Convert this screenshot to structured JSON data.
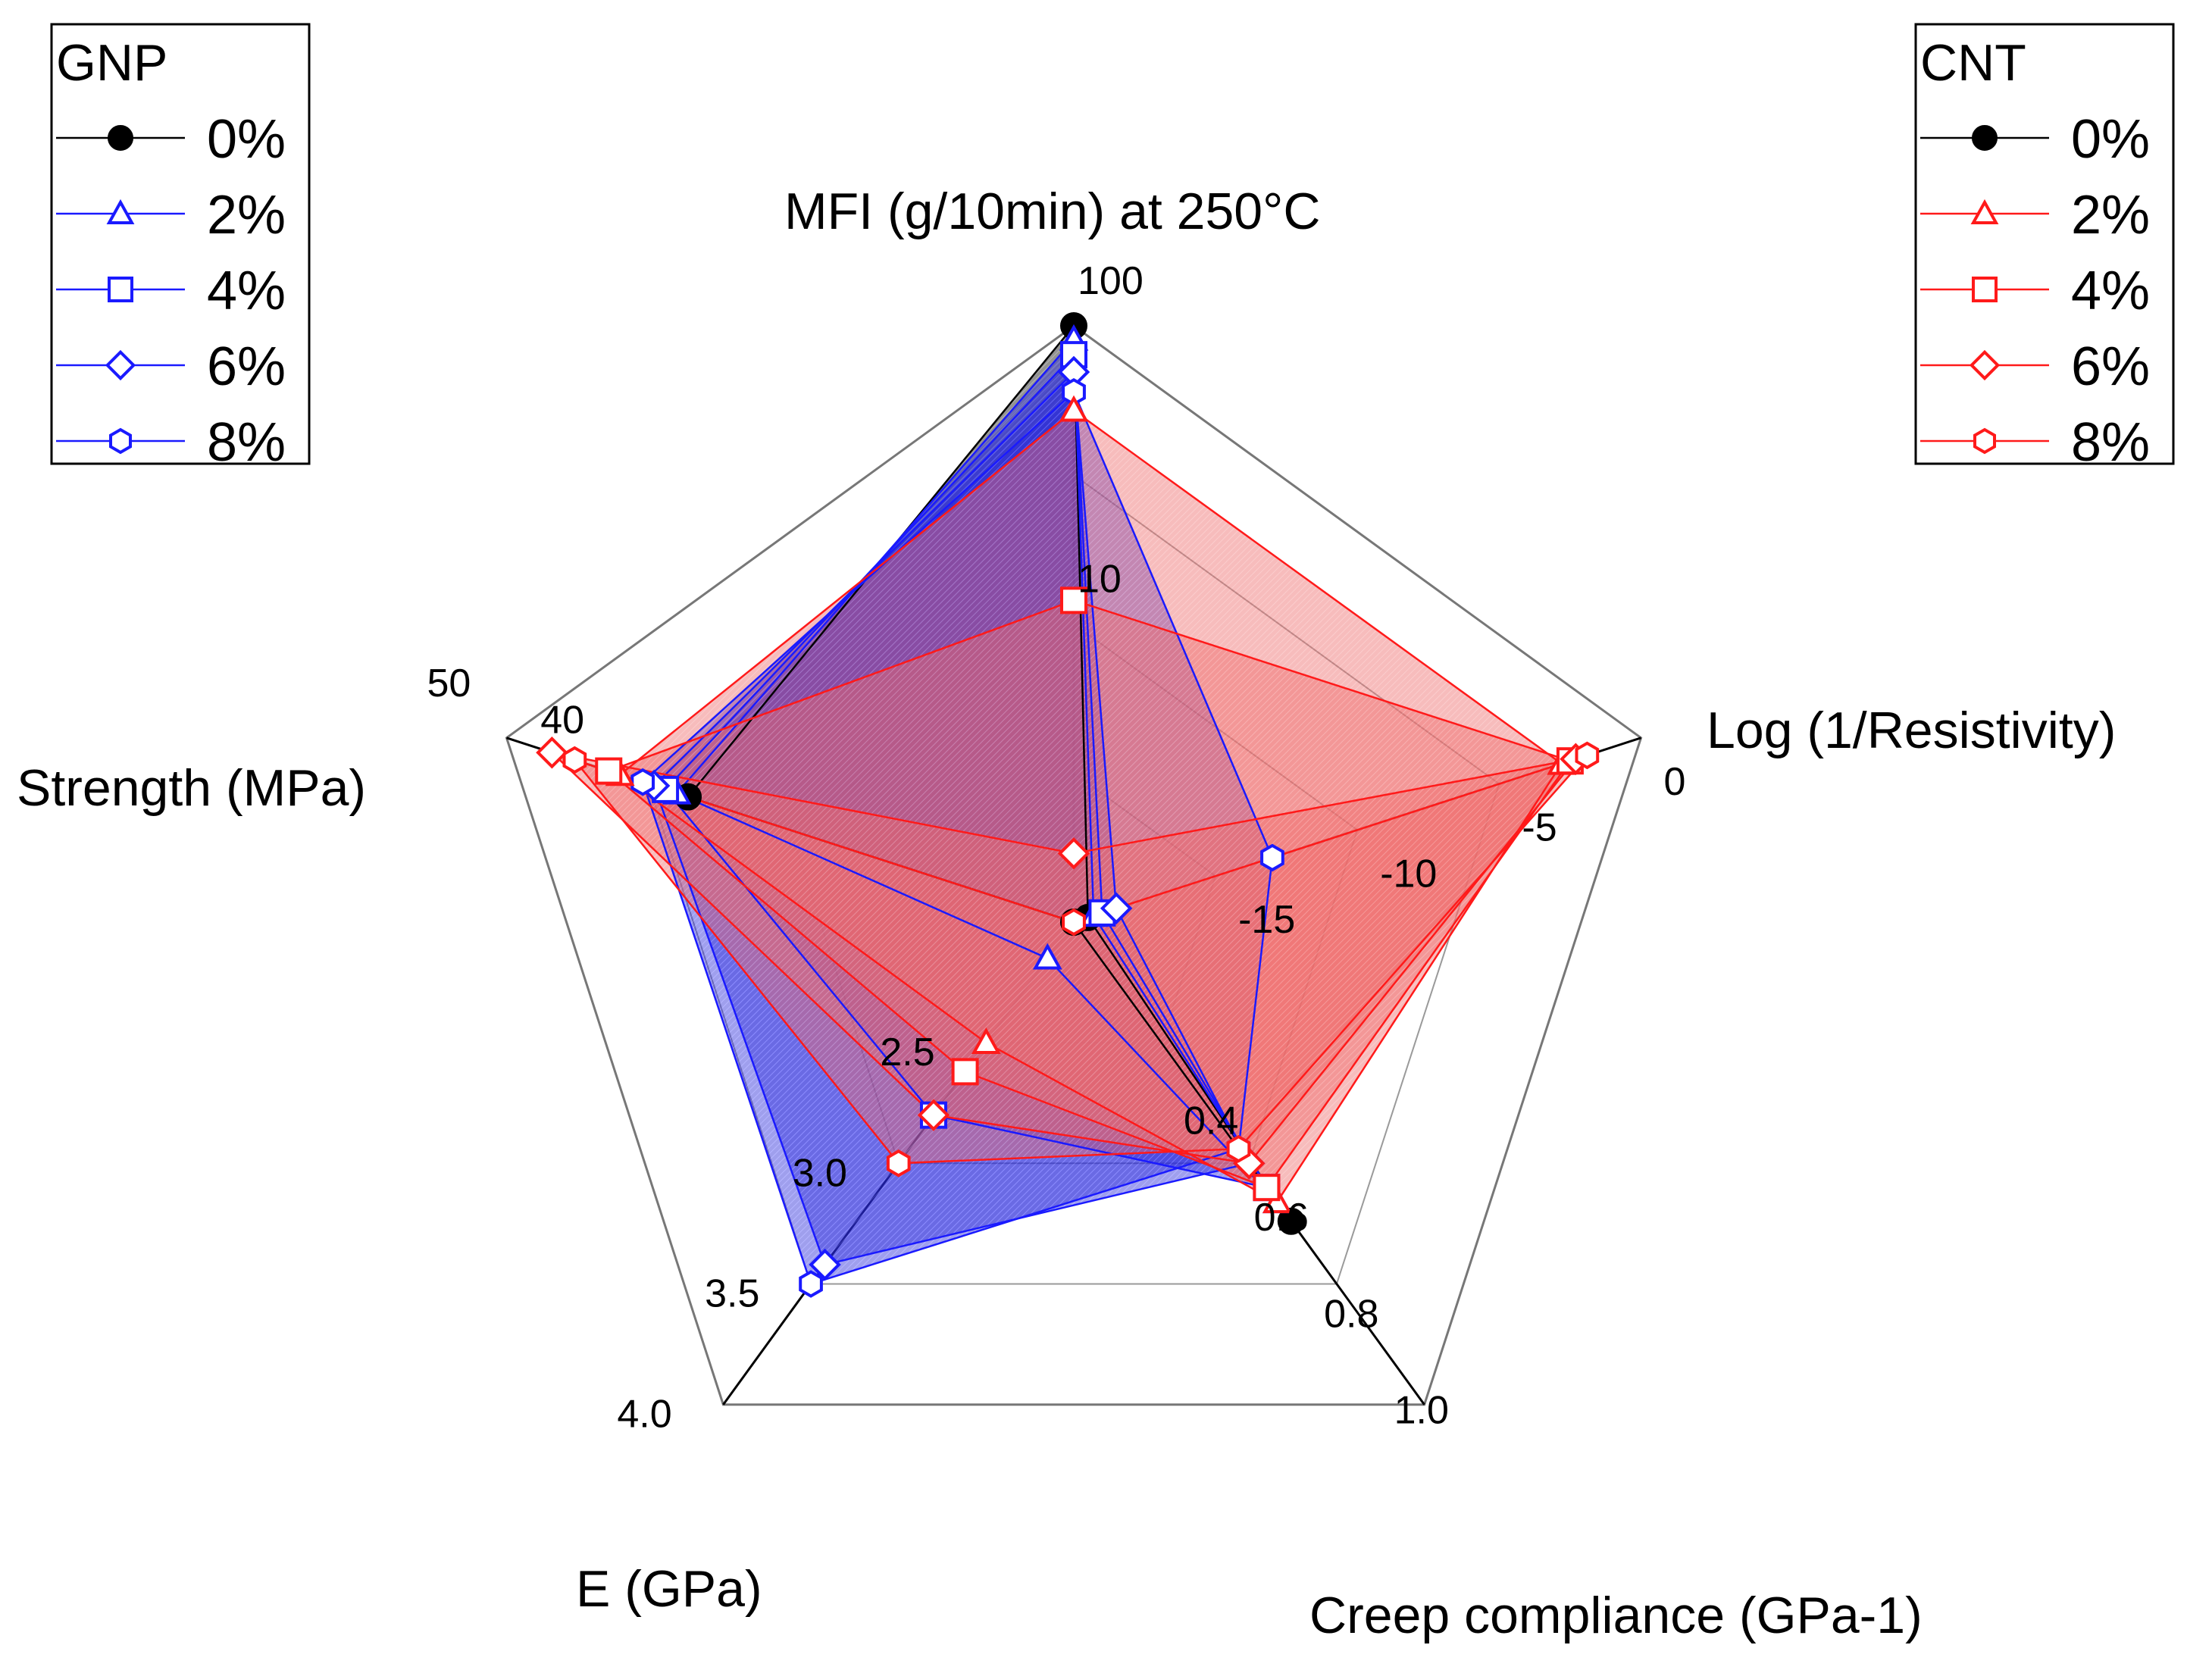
{
  "chart_data": {
    "type": "radar",
    "axes": [
      {
        "key": "mfi",
        "label": "MFI (g/10min) at 250°C",
        "scale": "log",
        "range": [
          1,
          100
        ],
        "ticks": [
          {
            "value": 100,
            "label": "100"
          },
          {
            "value": 10,
            "label": "10"
          }
        ]
      },
      {
        "key": "conductivity",
        "label": "Log (1/Resistivity)",
        "scale": "linear",
        "range": [
          -20,
          0
        ],
        "ticks": [
          {
            "value": 0,
            "label": "0"
          },
          {
            "value": -5,
            "label": "-5"
          },
          {
            "value": -10,
            "label": "-10"
          },
          {
            "value": -15,
            "label": "-15"
          }
        ]
      },
      {
        "key": "creep",
        "label": "Creep compliance (GPa-1)",
        "scale": "linear",
        "range": [
          0,
          1.0
        ],
        "ticks": [
          {
            "value": 1.0,
            "label": "1.0"
          },
          {
            "value": 0.8,
            "label": "0.8"
          },
          {
            "value": 0.6,
            "label": "0.6"
          },
          {
            "value": 0.4,
            "label": "0.4"
          }
        ]
      },
      {
        "key": "modulus",
        "label": "E (GPa)",
        "scale": "linear",
        "range": [
          2.0,
          4.0
        ],
        "ticks": [
          {
            "value": 4.0,
            "label": "4.0"
          },
          {
            "value": 3.5,
            "label": "3.5"
          },
          {
            "value": 3.0,
            "label": "3.0"
          },
          {
            "value": 2.5,
            "label": "2.5"
          }
        ]
      },
      {
        "key": "strength",
        "label": "Strength (MPa)",
        "scale": "linear",
        "range": [
          0,
          50
        ],
        "ticks": [
          {
            "value": 50,
            "label": "50"
          },
          {
            "value": 40,
            "label": "40"
          }
        ]
      }
    ],
    "legends": [
      {
        "title": "GNP",
        "position": "top-left",
        "color": "#1a1aff",
        "entries": [
          {
            "label": "0%",
            "marker": "circle"
          },
          {
            "label": "2%",
            "marker": "triangle"
          },
          {
            "label": "4%",
            "marker": "square"
          },
          {
            "label": "6%",
            "marker": "diamond"
          },
          {
            "label": "8%",
            "marker": "hexagon"
          }
        ]
      },
      {
        "title": "CNT",
        "position": "top-right",
        "color": "#ff1a1a",
        "entries": [
          {
            "label": "0%",
            "marker": "circle"
          },
          {
            "label": "2%",
            "marker": "triangle"
          },
          {
            "label": "4%",
            "marker": "square"
          },
          {
            "label": "6%",
            "marker": "diamond"
          },
          {
            "label": "8%",
            "marker": "hexagon"
          }
        ]
      }
    ],
    "series": [
      {
        "name": "0%",
        "group": "both",
        "color": "#000000",
        "marker": "circle",
        "filled": true,
        "values": {
          "mfi": 100,
          "conductivity": -19.5,
          "creep": 0.62,
          "modulus": 2.0,
          "strength": 34
        }
      },
      {
        "name": "GNP 2%",
        "group": "GNP",
        "color": "#1a1aff",
        "marker": "triangle",
        "filled": false,
        "values": {
          "mfi": 90,
          "conductivity": -19.3,
          "creep": 0.58,
          "modulus": 2.15,
          "strength": 35
        }
      },
      {
        "name": "GNP 4%",
        "group": "GNP",
        "color": "#1a1aff",
        "marker": "square",
        "filled": false,
        "values": {
          "mfi": 80,
          "conductivity": -19.0,
          "creep": 0.55,
          "modulus": 2.8,
          "strength": 36
        }
      },
      {
        "name": "GNP 6%",
        "group": "GNP",
        "color": "#1a1aff",
        "marker": "diamond",
        "filled": false,
        "values": {
          "mfi": 70,
          "conductivity": -18.5,
          "creep": 0.5,
          "modulus": 3.42,
          "strength": 37
        }
      },
      {
        "name": "GNP 8%",
        "group": "GNP",
        "color": "#1a1aff",
        "marker": "hexagon",
        "filled": false,
        "values": {
          "mfi": 60,
          "conductivity": -13.0,
          "creep": 0.47,
          "modulus": 3.5,
          "strength": 38
        }
      },
      {
        "name": "CNT 2%",
        "group": "CNT",
        "color": "#ff1a1a",
        "marker": "triangle",
        "filled": false,
        "values": {
          "mfi": 52,
          "conductivity": -2.8,
          "creep": 0.58,
          "modulus": 2.5,
          "strength": 40
        }
      },
      {
        "name": "CNT 4%",
        "group": "CNT",
        "color": "#ff1a1a",
        "marker": "square",
        "filled": false,
        "values": {
          "mfi": 12,
          "conductivity": -2.5,
          "creep": 0.55,
          "modulus": 2.62,
          "strength": 41
        }
      },
      {
        "name": "CNT 6%",
        "group": "CNT",
        "color": "#ff1a1a",
        "marker": "diamond",
        "filled": false,
        "values": {
          "mfi": 1.7,
          "conductivity": -2.3,
          "creep": 0.5,
          "modulus": 2.8,
          "strength": 46
        }
      },
      {
        "name": "CNT 8%",
        "group": "CNT",
        "color": "#ff1a1a",
        "marker": "hexagon",
        "filled": false,
        "values": {
          "mfi": 1.0,
          "conductivity": -1.9,
          "creep": 0.47,
          "modulus": 3.0,
          "strength": 44
        }
      }
    ]
  }
}
